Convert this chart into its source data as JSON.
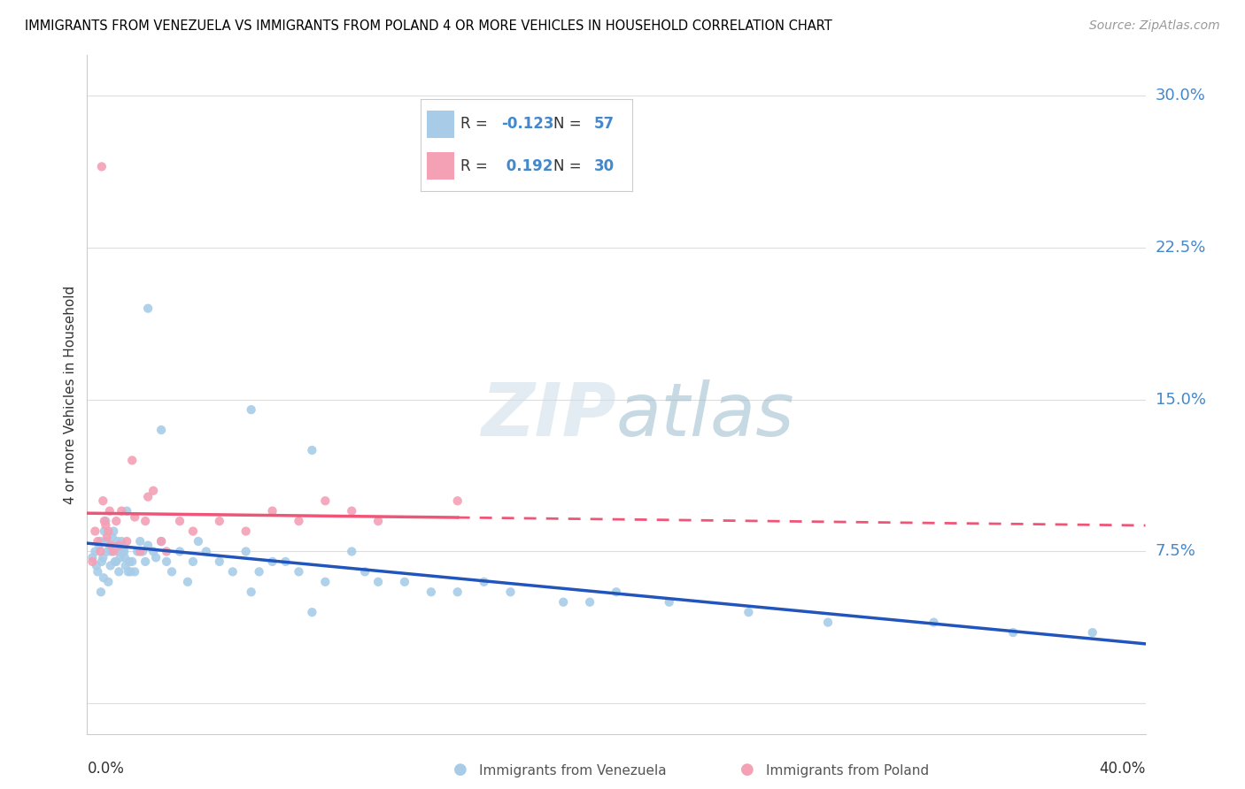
{
  "title": "IMMIGRANTS FROM VENEZUELA VS IMMIGRANTS FROM POLAND 4 OR MORE VEHICLES IN HOUSEHOLD CORRELATION CHART",
  "source": "Source: ZipAtlas.com",
  "ylabel": "4 or more Vehicles in Household",
  "xlim": [
    0.0,
    40.0
  ],
  "ylim": [
    -1.5,
    32.0
  ],
  "yticks": [
    0.0,
    7.5,
    15.0,
    22.5,
    30.0
  ],
  "ytick_labels": [
    "",
    "7.5%",
    "15.0%",
    "22.5%",
    "30.0%"
  ],
  "grid_color": "#dddddd",
  "color_venezuela": "#a8cce8",
  "color_poland": "#f4a0b5",
  "color_blue_text": "#4488cc",
  "color_trendline_venezuela": "#2255bb",
  "color_trendline_poland": "#ee5577",
  "venezuela_x": [
    0.2,
    0.3,
    0.35,
    0.4,
    0.45,
    0.5,
    0.55,
    0.6,
    0.65,
    0.7,
    0.75,
    0.8,
    0.85,
    0.9,
    0.95,
    1.0,
    1.05,
    1.1,
    1.15,
    1.2,
    1.25,
    1.3,
    1.35,
    1.4,
    1.45,
    1.5,
    1.6,
    1.65,
    1.7,
    1.8,
    1.9,
    2.0,
    2.1,
    2.2,
    2.3,
    2.5,
    2.6,
    2.8,
    3.0,
    3.2,
    3.5,
    3.8,
    4.0,
    4.2,
    4.5,
    5.0,
    5.5,
    6.0,
    6.2,
    6.5,
    7.0,
    7.5,
    8.0,
    8.5,
    9.0,
    10.0,
    10.5,
    11.0,
    12.0,
    13.0,
    14.0,
    15.0,
    16.0,
    18.0,
    19.0,
    20.0,
    22.0,
    25.0,
    28.0,
    32.0,
    35.0,
    38.0,
    2.3,
    2.8,
    6.2,
    8.5,
    1.55,
    0.72,
    1.22,
    0.88,
    1.42,
    0.52,
    0.62
  ],
  "venezuela_y": [
    7.2,
    7.5,
    6.8,
    6.5,
    7.8,
    8.0,
    7.0,
    7.2,
    8.5,
    9.0,
    7.5,
    6.0,
    7.8,
    7.5,
    8.2,
    8.5,
    7.0,
    7.0,
    8.0,
    6.5,
    7.2,
    8.0,
    7.5,
    7.5,
    6.8,
    9.5,
    7.0,
    6.5,
    7.0,
    6.5,
    7.5,
    8.0,
    7.5,
    7.0,
    7.8,
    7.5,
    7.2,
    8.0,
    7.0,
    6.5,
    7.5,
    6.0,
    7.0,
    8.0,
    7.5,
    7.0,
    6.5,
    7.5,
    14.5,
    6.5,
    7.0,
    7.0,
    6.5,
    12.5,
    6.0,
    7.5,
    6.5,
    6.0,
    6.0,
    5.5,
    5.5,
    6.0,
    5.5,
    5.0,
    5.0,
    5.5,
    5.0,
    4.5,
    4.0,
    4.0,
    3.5,
    3.5,
    19.5,
    13.5,
    5.5,
    4.5,
    6.5,
    8.0,
    7.5,
    6.8,
    7.2,
    5.5,
    6.2
  ],
  "poland_x": [
    0.2,
    0.3,
    0.4,
    0.5,
    0.6,
    0.65,
    0.7,
    0.8,
    0.85,
    0.9,
    1.0,
    1.1,
    1.3,
    1.5,
    1.7,
    2.0,
    2.2,
    2.5,
    2.8,
    3.0,
    3.5,
    4.0,
    5.0,
    6.0,
    7.0,
    8.0,
    9.0,
    10.0,
    11.0,
    14.0,
    0.55,
    0.75,
    1.2,
    1.8,
    2.3
  ],
  "poland_y": [
    7.0,
    8.5,
    8.0,
    7.5,
    10.0,
    9.0,
    8.8,
    8.5,
    9.5,
    7.8,
    7.5,
    9.0,
    9.5,
    8.0,
    12.0,
    7.5,
    9.0,
    10.5,
    8.0,
    7.5,
    9.0,
    8.5,
    9.0,
    8.5,
    9.5,
    9.0,
    10.0,
    9.5,
    9.0,
    10.0,
    26.5,
    8.2,
    7.8,
    9.2,
    10.2
  ]
}
